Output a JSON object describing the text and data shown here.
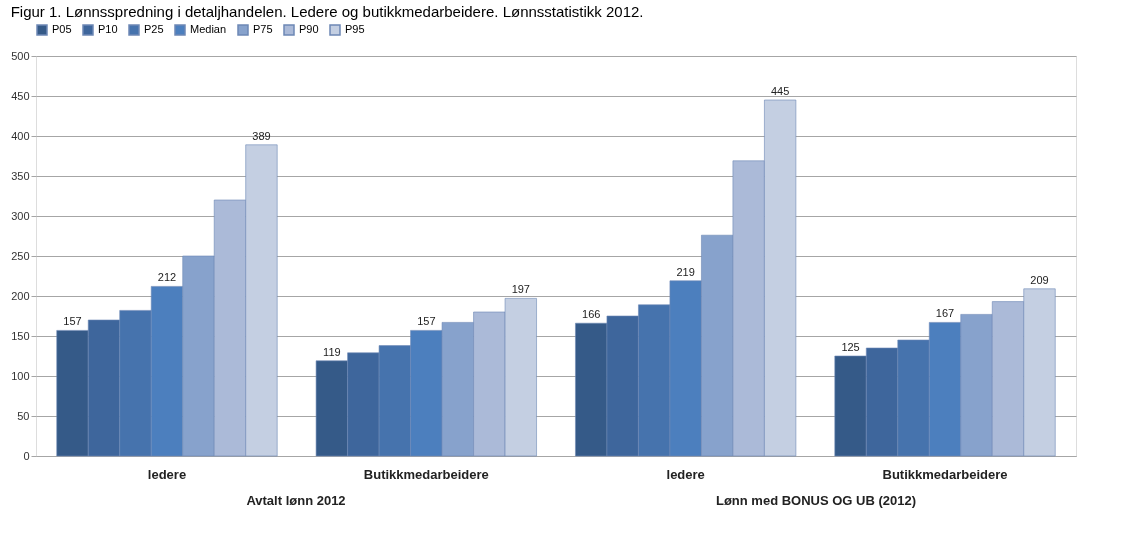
{
  "chart_data": {
    "type": "bar",
    "title": "Figur 1. Lønnsspredning i detaljhandelen. Ledere og butikkmedarbeidere. Lønnsstatistikk 2012.",
    "categories": [
      "ledere",
      "Butikkmedarbeidere",
      "ledere",
      "Butikkmedarbeidere"
    ],
    "series": [
      {
        "name": "P05",
        "color": "#355a88",
        "values": [
          157,
          119,
          166,
          125
        ],
        "value_labels": [
          "157",
          "119",
          "166",
          "125"
        ]
      },
      {
        "name": "P10",
        "color": "#3e669c",
        "values": [
          170,
          129,
          175,
          135
        ]
      },
      {
        "name": "P25",
        "color": "#4673ad",
        "values": [
          182,
          138,
          189,
          145
        ]
      },
      {
        "name": "Median",
        "color": "#4c7fbe",
        "values": [
          212,
          157,
          219,
          167
        ],
        "value_labels": [
          "212",
          "157",
          "219",
          "167"
        ]
      },
      {
        "name": "P75",
        "color": "#87a2cc",
        "values": [
          250,
          167,
          276,
          177
        ]
      },
      {
        "name": "P90",
        "color": "#abbad8",
        "values": [
          320,
          180,
          369,
          193
        ]
      },
      {
        "name": "P95",
        "color": "#c4cfe2",
        "values": [
          389,
          197,
          445,
          209
        ],
        "value_labels": [
          "389",
          "197",
          "445",
          "209"
        ]
      }
    ],
    "ylim": [
      0,
      500
    ],
    "yticks": [
      0,
      50,
      100,
      150,
      200,
      250,
      300,
      350,
      400,
      450,
      500
    ],
    "grid": "y",
    "legend": "top",
    "annotations": [
      "Avtalt lønn 2012",
      "Lønn med BONUS OG UB (2012)"
    ]
  }
}
